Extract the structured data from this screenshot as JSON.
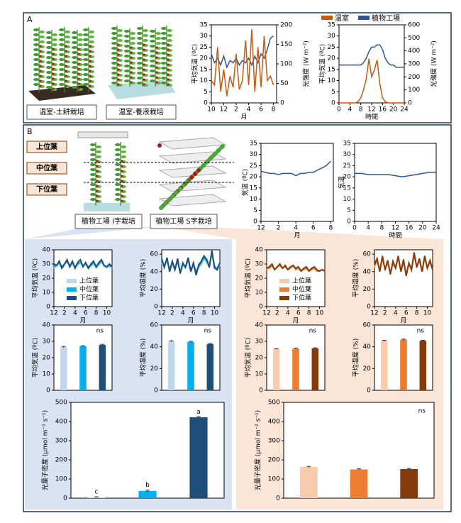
{
  "figure": {
    "panel_a": "A",
    "panel_b": "B",
    "a_labels": [
      "温室-土耕栽培",
      "温室-養液栽培"
    ],
    "b_labels": [
      "植物工場 I字栽培",
      "植物工場 S字栽培"
    ],
    "leaf_labels": [
      "上位葉",
      "中位葉",
      "下位葉"
    ]
  },
  "chart_data": [
    {
      "type": "line",
      "xlabel": "月",
      "ylabel": "平均気温 (ºC)",
      "y2label": "光強度 (W m⁻²)",
      "x": [
        0,
        0.5,
        1,
        1.5,
        2,
        2.5,
        3,
        3.5,
        4,
        4.5,
        5,
        5.5,
        6,
        6.5,
        7,
        7.5,
        8,
        8.5,
        9,
        9.5,
        10
      ],
      "xlim": [
        0,
        10.5
      ],
      "xticks": [
        {
          "value": 0,
          "label": "10"
        },
        {
          "value": 2,
          "label": "12"
        },
        {
          "value": 4,
          "label": "2"
        },
        {
          "value": 6,
          "label": "4"
        },
        {
          "value": 8,
          "label": "6"
        },
        {
          "value": 10,
          "label": "8"
        }
      ],
      "ylim": [
        0,
        35
      ],
      "yticks": [
        0,
        5,
        10,
        15,
        20,
        25,
        30,
        35
      ],
      "y2lim": [
        0,
        200
      ],
      "y2ticks": [
        0,
        50,
        100,
        150,
        200
      ],
      "series": [
        {
          "color": "#2f5597",
          "values": [
            22,
            18,
            20,
            17,
            21,
            16,
            19,
            18,
            20,
            17,
            19,
            18,
            20,
            17,
            21,
            18,
            22,
            20,
            24,
            29,
            30
          ]
        },
        {
          "color": "#c55a11",
          "values": [
            10,
            8,
            25,
            5,
            15,
            3,
            12,
            7,
            22,
            6,
            10,
            28,
            8,
            33,
            5,
            25,
            7,
            30,
            10,
            12,
            8
          ]
        }
      ]
    },
    {
      "type": "line",
      "xlabel": "時間",
      "ylabel": "平均気温 (ºC)",
      "y2label": "光強度 (W m⁻²)",
      "legend": "top",
      "x": [
        0,
        1,
        2,
        3,
        4,
        5,
        6,
        7,
        8,
        9,
        10,
        11,
        12,
        13,
        14,
        15,
        16,
        17,
        18,
        19,
        20,
        21,
        22,
        23,
        24
      ],
      "xlim": [
        0,
        24
      ],
      "xticks": [
        0,
        4,
        8,
        12,
        16,
        20,
        24
      ],
      "ylim": [
        0,
        35
      ],
      "yticks": [
        0,
        5,
        10,
        15,
        20,
        25,
        30,
        35
      ],
      "y2lim": [
        0,
        600
      ],
      "y2ticks": [
        0,
        100,
        200,
        300,
        400,
        500,
        600
      ],
      "series": [
        {
          "name": "温室",
          "color": "#c55a11",
          "axis": "y2",
          "values": [
            0,
            0,
            0,
            0,
            0,
            0,
            0,
            10,
            40,
            100,
            180,
            340,
            200,
            250,
            330,
            150,
            40,
            10,
            0,
            0,
            0,
            0,
            0,
            0,
            0
          ]
        },
        {
          "name": "植物工場",
          "color": "#2f5597",
          "values": [
            17,
            17,
            17,
            17,
            17,
            17,
            17,
            17,
            17,
            18,
            20,
            23,
            25,
            25,
            26,
            26,
            24,
            20,
            18,
            17,
            17,
            16,
            16,
            16,
            16
          ]
        }
      ]
    },
    {
      "type": "line",
      "xlabel": "月",
      "ylabel": "気温 (ºC)",
      "x": [
        0,
        0.5,
        1,
        1.5,
        2,
        2.5,
        3,
        3.5,
        4,
        4.5,
        5,
        5.5,
        6,
        6.5,
        7,
        7.5,
        8
      ],
      "xlim": [
        0,
        8.3
      ],
      "xticks": [
        {
          "value": 0,
          "label": "12"
        },
        2,
        4,
        6,
        8
      ],
      "ylim": [
        0,
        35
      ],
      "yticks": [
        0,
        5,
        10,
        15,
        20,
        25,
        30,
        35
      ],
      "series": [
        {
          "color": "#2f5597",
          "values": [
            22.5,
            22,
            21.5,
            21.5,
            21,
            21.5,
            21.5,
            21.5,
            20.5,
            21.5,
            21.5,
            22,
            22,
            23,
            24,
            25,
            27
          ]
        }
      ]
    },
    {
      "type": "line",
      "xlabel": "時間",
      "ylabel": "気温",
      "x": [
        0,
        2,
        4,
        6,
        8,
        10,
        12,
        14,
        16,
        18,
        20,
        22,
        24
      ],
      "xlim": [
        0,
        24
      ],
      "xticks": [
        0,
        4,
        8,
        12,
        16,
        20,
        24
      ],
      "ylim": [
        0,
        35
      ],
      "yticks": [
        0,
        5,
        10,
        15,
        20,
        25,
        30,
        35
      ],
      "series": [
        {
          "color": "#2f5597",
          "values": [
            21.5,
            21.5,
            21,
            21,
            21,
            21,
            20.5,
            20,
            20.5,
            21,
            21.5,
            22,
            22
          ]
        }
      ]
    },
    {
      "type": "line",
      "xlabel": "月",
      "ylabel": "平均気温 (ºC)",
      "legend": "lower left",
      "x": [
        0,
        0.5,
        1,
        1.5,
        2,
        2.5,
        3,
        3.5,
        4,
        4.5,
        5,
        5.5,
        6,
        6.5,
        7,
        7.5,
        8,
        8.5,
        9,
        9.5,
        10,
        10.5,
        11
      ],
      "xlim": [
        0,
        11
      ],
      "xticks": [
        {
          "value": 0,
          "label": "12"
        },
        2,
        4,
        6,
        8,
        10
      ],
      "ylim": [
        0,
        40
      ],
      "yticks": [
        0,
        10,
        20,
        30,
        40
      ],
      "series": [
        {
          "name": "上位葉",
          "color": "#bdd7ee",
          "values": [
            27,
            28,
            30,
            27,
            29,
            31,
            28,
            30,
            27,
            29,
            31,
            28,
            30,
            27,
            28,
            30,
            27,
            29,
            31,
            28,
            27,
            28,
            27
          ]
        },
        {
          "name": "中位葉",
          "color": "#00b0f0",
          "values": [
            28,
            29,
            31,
            28,
            30,
            32,
            29,
            31,
            28,
            30,
            31,
            29,
            30,
            28,
            29,
            31,
            28,
            30,
            32,
            29,
            28,
            29,
            28
          ]
        },
        {
          "name": "下位葉",
          "color": "#1f4e79",
          "values": [
            30,
            29,
            32,
            27,
            30,
            33,
            28,
            32,
            27,
            31,
            33,
            28,
            31,
            27,
            30,
            32,
            28,
            31,
            33,
            29,
            28,
            30,
            28
          ]
        }
      ]
    },
    {
      "type": "line",
      "xlabel": "月",
      "ylabel": "平均湿度 (%)",
      "x": [
        0,
        0.5,
        1,
        1.5,
        2,
        2.5,
        3,
        3.5,
        4,
        4.5,
        5,
        5.5,
        6,
        6.5,
        7,
        7.5,
        8,
        8.5,
        9,
        9.5,
        10,
        10.5,
        11
      ],
      "xlim": [
        0,
        11
      ],
      "xticks": [
        {
          "value": 0,
          "label": "12"
        },
        2,
        4,
        6,
        8,
        10
      ],
      "ylim": [
        0,
        65
      ],
      "yticks": [
        0,
        20,
        40,
        60
      ],
      "series": [
        {
          "color": "#bdd7ee",
          "values": [
            50,
            45,
            52,
            40,
            48,
            42,
            50,
            38,
            47,
            44,
            52,
            40,
            46,
            38,
            44,
            48,
            55,
            50,
            45,
            60,
            45,
            42,
            48
          ]
        },
        {
          "color": "#00b0f0",
          "values": [
            52,
            47,
            54,
            42,
            50,
            44,
            52,
            40,
            48,
            46,
            54,
            42,
            48,
            40,
            46,
            50,
            56,
            52,
            46,
            62,
            46,
            44,
            50
          ]
        },
        {
          "color": "#1f4e79",
          "values": [
            55,
            45,
            56,
            40,
            52,
            42,
            55,
            38,
            50,
            45,
            56,
            40,
            50,
            36,
            48,
            52,
            58,
            54,
            45,
            64,
            44,
            42,
            50
          ]
        }
      ]
    },
    {
      "type": "bar",
      "ylabel": "平均気温 (ºC)",
      "annotation": "ns",
      "categories": [
        null,
        null,
        null
      ],
      "values": [
        26.5,
        27,
        27.8
      ],
      "errors": [
        0.4,
        0.3,
        0.4
      ],
      "colors": [
        "#bdd7ee",
        "#00b0f0",
        "#1f4e79"
      ],
      "ylim": [
        0,
        40
      ],
      "yticks": [
        0,
        10,
        20,
        30,
        40
      ]
    },
    {
      "type": "bar",
      "ylabel": "平均湿度 (%)",
      "annotation": "ns",
      "categories": [
        null,
        null,
        null
      ],
      "values": [
        45,
        44.5,
        42.5
      ],
      "errors": [
        0.6,
        0.5,
        0.5
      ],
      "colors": [
        "#bdd7ee",
        "#00b0f0",
        "#1f4e79"
      ],
      "ylim": [
        0,
        60
      ],
      "yticks": [
        0,
        20,
        40,
        60
      ]
    },
    {
      "type": "bar",
      "ylabel": "光量子密度 (μmol m⁻² s⁻¹)",
      "categories": [
        null,
        null,
        null
      ],
      "values": [
        5,
        38,
        422
      ],
      "errors": [
        2,
        4,
        3
      ],
      "annotations": [
        "c",
        "b",
        "a"
      ],
      "colors": [
        "#bdd7ee",
        "#00b0f0",
        "#1f4e79"
      ],
      "ylim": [
        0,
        500
      ],
      "yticks": [
        0,
        100,
        200,
        300,
        400,
        500
      ]
    },
    {
      "type": "line",
      "xlabel": "月",
      "ylabel": "平均気温 (ºC)",
      "legend": "lower left",
      "x": [
        0,
        0.5,
        1,
        1.5,
        2,
        2.5,
        3,
        3.5,
        4,
        4.5,
        5,
        5.5,
        6,
        6.5,
        7,
        7.5,
        8,
        8.5,
        9,
        9.5,
        10,
        10.5,
        11
      ],
      "xlim": [
        0,
        11
      ],
      "xticks": [
        {
          "value": 0,
          "label": "12"
        },
        2,
        4,
        6,
        8,
        10
      ],
      "ylim": [
        0,
        40
      ],
      "yticks": [
        0,
        10,
        20,
        30,
        40
      ],
      "series": [
        {
          "name": "上位葉",
          "color": "#f8cbad",
          "values": [
            26,
            27,
            28,
            26,
            27,
            29,
            27,
            28,
            26,
            27,
            28,
            26,
            27,
            25,
            26,
            27,
            25,
            26,
            27,
            25,
            25,
            26,
            25
          ]
        },
        {
          "name": "中位葉",
          "color": "#ed7d31",
          "values": [
            27,
            27,
            29,
            26,
            28,
            29,
            27,
            28,
            26,
            27,
            29,
            26,
            27,
            25,
            26,
            27,
            25,
            26,
            27,
            25,
            25,
            26,
            25
          ]
        },
        {
          "name": "下位葉",
          "color": "#843c0c",
          "values": [
            27,
            28,
            30,
            26,
            28,
            30,
            27,
            29,
            26,
            28,
            29,
            27,
            28,
            25,
            27,
            28,
            25,
            27,
            28,
            26,
            25,
            26,
            25
          ]
        }
      ]
    },
    {
      "type": "line",
      "xlabel": "月",
      "ylabel": "平均湿度 (%)",
      "x": [
        0,
        0.5,
        1,
        1.5,
        2,
        2.5,
        3,
        3.5,
        4,
        4.5,
        5,
        5.5,
        6,
        6.5,
        7,
        7.5,
        8,
        8.5,
        9,
        9.5,
        10,
        10.5,
        11
      ],
      "xlim": [
        0,
        11
      ],
      "xticks": [
        {
          "value": 0,
          "label": "12"
        },
        2,
        4,
        6,
        8,
        10
      ],
      "ylim": [
        0,
        65
      ],
      "yticks": [
        0,
        20,
        40,
        60
      ],
      "series": [
        {
          "color": "#f8cbad",
          "values": [
            45,
            52,
            40,
            55,
            42,
            50,
            38,
            48,
            44,
            55,
            40,
            50,
            36,
            48,
            42,
            58,
            45,
            52,
            40,
            55,
            44,
            50,
            42
          ]
        },
        {
          "color": "#ed7d31",
          "values": [
            46,
            53,
            41,
            56,
            43,
            51,
            39,
            49,
            45,
            56,
            41,
            51,
            37,
            49,
            43,
            59,
            46,
            53,
            41,
            56,
            45,
            51,
            43
          ]
        },
        {
          "color": "#843c0c",
          "values": [
            48,
            55,
            40,
            58,
            42,
            53,
            37,
            52,
            44,
            58,
            40,
            54,
            35,
            50,
            42,
            62,
            45,
            55,
            40,
            58,
            44,
            53,
            42
          ]
        }
      ]
    },
    {
      "type": "bar",
      "ylabel": "平均気温 (ºC)",
      "annotation": "ns",
      "categories": [
        null,
        null,
        null
      ],
      "values": [
        25.2,
        25.5,
        25.7
      ],
      "errors": [
        0.3,
        0.3,
        0.3
      ],
      "colors": [
        "#f8cbad",
        "#ed7d31",
        "#843c0c"
      ],
      "ylim": [
        0,
        40
      ],
      "yticks": [
        0,
        10,
        20,
        30,
        40
      ]
    },
    {
      "type": "bar",
      "ylabel": "平均湿度 (%)",
      "annotation": "ns",
      "categories": [
        null,
        null,
        null
      ],
      "values": [
        45.5,
        46.5,
        45.5
      ],
      "errors": [
        0.5,
        0.5,
        0.5
      ],
      "colors": [
        "#f8cbad",
        "#ed7d31",
        "#843c0c"
      ],
      "ylim": [
        0,
        60
      ],
      "yticks": [
        0,
        20,
        40,
        60
      ]
    },
    {
      "type": "bar",
      "ylabel": "光量子密度 (μmol m⁻² s⁻¹)",
      "annotation": "ns",
      "categories": [
        null,
        null,
        null
      ],
      "values": [
        163,
        150,
        152
      ],
      "errors": [
        3,
        3,
        3
      ],
      "colors": [
        "#f8cbad",
        "#ed7d31",
        "#843c0c"
      ],
      "ylim": [
        0,
        500
      ],
      "yticks": [
        0,
        100,
        200,
        300,
        400,
        500
      ]
    }
  ]
}
